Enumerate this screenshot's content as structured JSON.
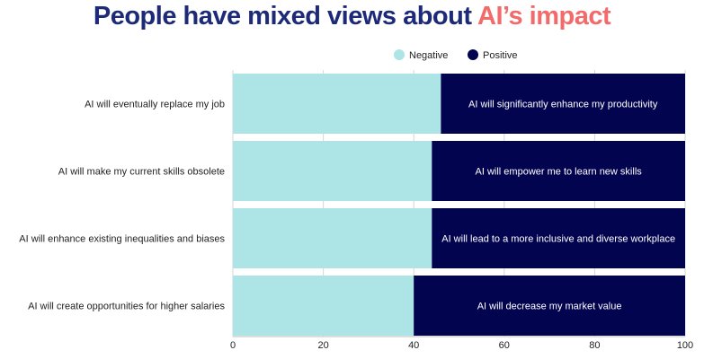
{
  "chart_data": {
    "type": "bar",
    "orientation": "horizontal-stacked",
    "title": "People have mixed views about ",
    "title_highlight": "AI’s impact",
    "colors": {
      "title": "#1c2a78",
      "highlight": "#f26b6b",
      "Negative": "#ade4e6",
      "Positive": "#03044f"
    },
    "legend": {
      "placement": "top-center",
      "entries": [
        "Negative",
        "Positive"
      ]
    },
    "categories": [
      "AI will eventually replace my job",
      "AI will make my current skills obsolete",
      "AI will enhance existing inequalities and biases",
      "AI will create opportunities for higher salaries"
    ],
    "positive_labels": [
      "AI will significantly enhance my productivity",
      "AI will empower me to learn new skills",
      "AI will lead to a more inclusive and diverse workplace",
      "AI will decrease my market value"
    ],
    "series": [
      {
        "name": "Negative",
        "values": [
          46,
          44,
          44,
          40
        ]
      },
      {
        "name": "Positive",
        "values": [
          54,
          56,
          56,
          60
        ]
      }
    ],
    "xlim": [
      0,
      100
    ],
    "xticks": [
      0,
      20,
      40,
      60,
      80,
      100
    ],
    "grid": true
  }
}
